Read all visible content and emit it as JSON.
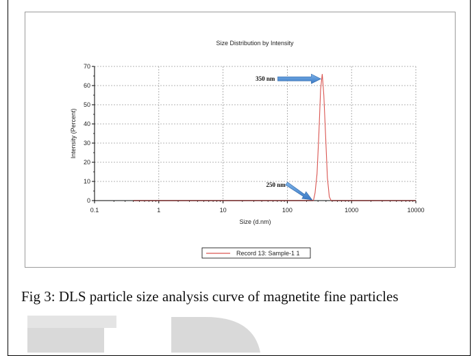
{
  "chart_data": {
    "type": "line",
    "title": "Size Distribution by Intensity",
    "xlabel": "Size (d.nm)",
    "ylabel": "Intensity (Percent)",
    "xscale": "log",
    "xlim": [
      0.1,
      10000
    ],
    "ylim": [
      0,
      70
    ],
    "xticks": [
      "0.1",
      "1",
      "10",
      "100",
      "1000",
      "10000"
    ],
    "yticks": [
      "0",
      "10",
      "20",
      "30",
      "40",
      "50",
      "60",
      "70"
    ],
    "grid": true,
    "legend": "bottom-center",
    "series": [
      {
        "name": "Record 13: Sample-1 1",
        "color": "#d9534f",
        "x": [
          0.4,
          200,
          255,
          270,
          290,
          310,
          330,
          350,
          370,
          395,
          420,
          450,
          480,
          10000
        ],
        "y": [
          0,
          0,
          0,
          4,
          14,
          35,
          58,
          66,
          55,
          33,
          12,
          2,
          0,
          0
        ]
      }
    ],
    "annotations": [
      {
        "text": "350 nm",
        "x": 350,
        "y": 66
      },
      {
        "text": "250 nm",
        "x": 250,
        "y": 0
      }
    ]
  },
  "caption": "Fig 3: DLS particle size analysis curve of magnetite fine particles",
  "colors": {
    "arrow": "#4a8fd6",
    "grid": "#9a9a9a",
    "watermark": "#d9d9d9"
  }
}
